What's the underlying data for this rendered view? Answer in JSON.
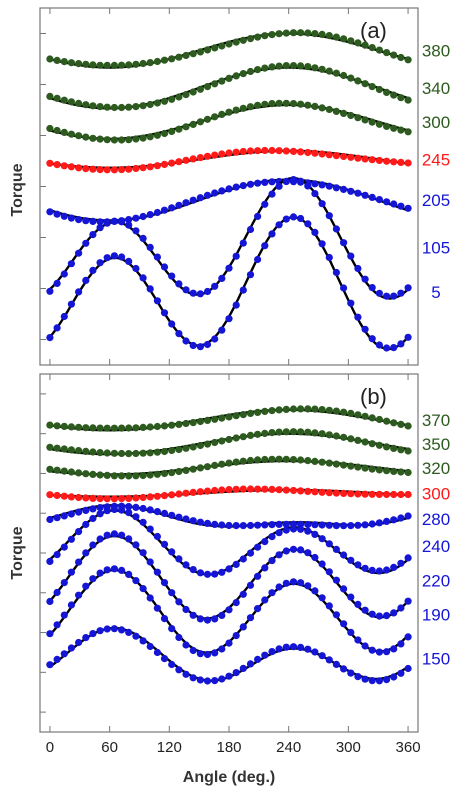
{
  "chart_data": [
    {
      "type": "scatter",
      "panel_label": "(a)",
      "ylabel": "Torque",
      "xlabel": "",
      "xlim": [
        -10,
        370
      ],
      "xticks": [
        0,
        60,
        120,
        180,
        240,
        300,
        360
      ],
      "legend_placement": "right",
      "series": [
        {
          "name": "380",
          "color": "#2d5a1e",
          "line_color": "#000000",
          "offset": 0.8,
          "a1": 0.1,
          "a2": 0.0,
          "phase": 0
        },
        {
          "name": "340",
          "color": "#2d5a1e",
          "line_color": "#000000",
          "offset": 0.58,
          "a1": 0.12,
          "a2": 0.0,
          "phase": 0
        },
        {
          "name": "300",
          "color": "#2d5a1e",
          "line_color": "#000000",
          "offset": 0.38,
          "a1": 0.1,
          "a2": 0.0,
          "phase": 0
        },
        {
          "name": "245",
          "color": "#ff1a1a",
          "line_color": "#000000",
          "offset": 0.16,
          "a1": 0.05,
          "a2": 0.0,
          "phase": 0
        },
        {
          "name": "205",
          "color": "#1515d6",
          "line_color": "#000000",
          "offset": -0.08,
          "a1": 0.12,
          "a2": 0.0,
          "phase": 0
        },
        {
          "name": "105",
          "color": "#1515d6",
          "line_color": "#000000",
          "offset": -0.36,
          "a1": 0.13,
          "a2": 0.28,
          "phase": 0
        },
        {
          "name": "5",
          "color": "#1515d6",
          "line_color": "#000000",
          "offset": -0.62,
          "a1": 0.12,
          "a2": 0.32,
          "phase": 0
        }
      ]
    },
    {
      "type": "scatter",
      "panel_label": "(b)",
      "ylabel": "Torque",
      "xlabel": "Angle (deg.)",
      "xlim": [
        -10,
        370
      ],
      "xticks": [
        0,
        60,
        120,
        180,
        240,
        300,
        360
      ],
      "legend_placement": "right",
      "series": [
        {
          "name": "370",
          "color": "#2d5a1e",
          "line_color": "#000000",
          "offset": 0.78,
          "a1": 0.06,
          "a2": 0.0,
          "phase": 0
        },
        {
          "name": "350",
          "color": "#2d5a1e",
          "line_color": "#000000",
          "offset": 0.64,
          "a1": 0.06,
          "a2": 0.0,
          "phase": 0
        },
        {
          "name": "320",
          "color": "#2d5a1e",
          "line_color": "#000000",
          "offset": 0.5,
          "a1": 0.04,
          "a2": 0.0,
          "phase": 0
        },
        {
          "name": "300",
          "color": "#ff1a1a",
          "line_color": "#000000",
          "offset": 0.35,
          "a1": 0.02,
          "a2": 0.0,
          "phase": 0
        },
        {
          "name": "280",
          "color": "#1515d6",
          "line_color": "#000000",
          "offset": 0.2,
          "a1": -0.05,
          "a2": 0.03,
          "phase": 0
        },
        {
          "name": "240",
          "color": "#1515d6",
          "line_color": "#000000",
          "offset": 0.04,
          "a1": -0.05,
          "a2": 0.16,
          "phase": 0
        },
        {
          "name": "220",
          "color": "#1515d6",
          "line_color": "#000000",
          "offset": -0.16,
          "a1": -0.04,
          "a2": 0.22,
          "phase": 0
        },
        {
          "name": "190",
          "color": "#1515d6",
          "line_color": "#000000",
          "offset": -0.36,
          "a1": -0.04,
          "a2": 0.22,
          "phase": 0
        },
        {
          "name": "150",
          "color": "#1515d6",
          "line_color": "#000000",
          "offset": -0.62,
          "a1": -0.06,
          "a2": 0.12,
          "phase": 0
        }
      ]
    }
  ]
}
